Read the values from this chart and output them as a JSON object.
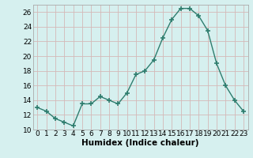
{
  "x": [
    0,
    1,
    2,
    3,
    4,
    5,
    6,
    7,
    8,
    9,
    10,
    11,
    12,
    13,
    14,
    15,
    16,
    17,
    18,
    19,
    20,
    21,
    22,
    23
  ],
  "y": [
    13,
    12.5,
    11.5,
    11,
    10.5,
    13.5,
    13.5,
    14.5,
    14,
    13.5,
    15,
    17.5,
    18,
    19.5,
    22.5,
    25,
    26.5,
    26.5,
    25.5,
    23.5,
    19,
    16,
    14,
    12.5
  ],
  "line_color": "#2e7d6e",
  "marker": "+",
  "marker_size": 4,
  "bg_color": "#d6f0ef",
  "grid_color": "#d4b8b8",
  "xlabel": "Humidex (Indice chaleur)",
  "ylim": [
    10,
    27
  ],
  "xlim": [
    -0.5,
    23.5
  ],
  "yticks": [
    10,
    12,
    14,
    16,
    18,
    20,
    22,
    24,
    26
  ],
  "xticks": [
    0,
    1,
    2,
    3,
    4,
    5,
    6,
    7,
    8,
    9,
    10,
    11,
    12,
    13,
    14,
    15,
    16,
    17,
    18,
    19,
    20,
    21,
    22,
    23
  ],
  "xtick_labels": [
    "0",
    "1",
    "2",
    "3",
    "4",
    "5",
    "6",
    "7",
    "8",
    "9",
    "10",
    "11",
    "12",
    "13",
    "14",
    "15",
    "16",
    "17",
    "18",
    "19",
    "20",
    "21",
    "22",
    "23"
  ],
  "xlabel_fontsize": 7.5,
  "tick_fontsize": 6.5,
  "spine_color": "#aaaaaa"
}
